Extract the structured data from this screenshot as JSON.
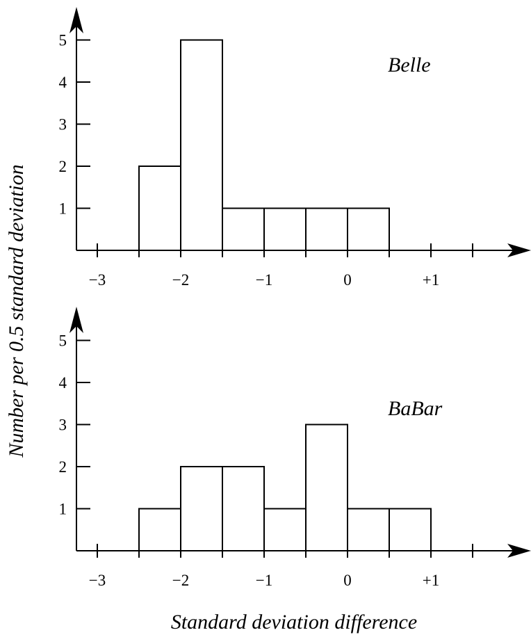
{
  "chart_data": {
    "type": "histogram",
    "ylabel": "Number per 0.5 standard deviation",
    "xlabel": "Standard deviation difference",
    "panels": [
      {
        "name": "Belle",
        "bin_width": 0.5,
        "bins": [
          {
            "from": -2.5,
            "to": -2.0,
            "count": 2
          },
          {
            "from": -2.0,
            "to": -1.5,
            "count": 5
          },
          {
            "from": -1.5,
            "to": -1.0,
            "count": 1
          },
          {
            "from": -1.0,
            "to": -0.5,
            "count": 1
          },
          {
            "from": -0.5,
            "to": 0.0,
            "count": 1
          },
          {
            "from": 0.0,
            "to": 0.5,
            "count": 1
          }
        ],
        "xlim": [
          -3.25,
          1.5
        ],
        "ylim": [
          0,
          5
        ],
        "x_ticks": [
          -3,
          -2.5,
          -2,
          -1.5,
          -1,
          -0.5,
          0,
          0.5,
          1,
          1.5
        ],
        "x_tick_labels": [
          {
            "value": -3,
            "text": "−3"
          },
          {
            "value": -2,
            "text": "−2"
          },
          {
            "value": -1,
            "text": "−1"
          },
          {
            "value": 0,
            "text": "0"
          },
          {
            "value": 1,
            "text": "+1"
          }
        ],
        "y_ticks": [
          1,
          2,
          3,
          4,
          5
        ],
        "y_tick_labels": [
          "1",
          "2",
          "3",
          "4",
          "5"
        ]
      },
      {
        "name": "BaBar",
        "bin_width": 0.5,
        "bins": [
          {
            "from": -2.5,
            "to": -2.0,
            "count": 1
          },
          {
            "from": -2.0,
            "to": -1.5,
            "count": 2
          },
          {
            "from": -1.5,
            "to": -1.0,
            "count": 2
          },
          {
            "from": -1.0,
            "to": -0.5,
            "count": 1
          },
          {
            "from": -0.5,
            "to": 0.0,
            "count": 3
          },
          {
            "from": 0.0,
            "to": 0.5,
            "count": 1
          },
          {
            "from": 0.5,
            "to": 1.0,
            "count": 1
          }
        ],
        "xlim": [
          -3.25,
          1.5
        ],
        "ylim": [
          0,
          5
        ],
        "x_ticks": [
          -3,
          -2.5,
          -2,
          -1.5,
          -1,
          -0.5,
          0,
          0.5,
          1,
          1.5
        ],
        "x_tick_labels": [
          {
            "value": -3,
            "text": "−3"
          },
          {
            "value": -2,
            "text": "−2"
          },
          {
            "value": -1,
            "text": "−1"
          },
          {
            "value": 0,
            "text": "0"
          },
          {
            "value": 1,
            "text": "+1"
          }
        ],
        "y_ticks": [
          1,
          2,
          3,
          4,
          5
        ],
        "y_tick_labels": [
          "1",
          "2",
          "3",
          "4",
          "5"
        ]
      }
    ]
  }
}
